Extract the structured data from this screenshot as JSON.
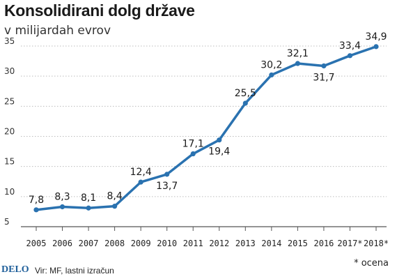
{
  "header": {
    "title": "Konsolidirani dolg države",
    "subtitle": "v milijardah evrov"
  },
  "footer": {
    "logo": "DELO",
    "source": "Vir: MF, lastni izračun",
    "footnote": "* ocena"
  },
  "colors": {
    "line": "#2a72b0",
    "grid": "#bdbdbd",
    "axis": "#555555"
  },
  "chart_data": {
    "type": "line",
    "title": "Konsolidirani dolg države",
    "subtitle": "v milijardah evrov",
    "categories": [
      "2005",
      "2006",
      "2007",
      "2008",
      "2009",
      "2010",
      "2011",
      "2012",
      "2013",
      "2014",
      "2015",
      "2016",
      "2017*",
      "2018*"
    ],
    "values": [
      7.8,
      8.3,
      8.1,
      8.4,
      12.4,
      13.7,
      17.1,
      19.4,
      25.5,
      30.2,
      32.1,
      31.7,
      33.4,
      34.9
    ],
    "value_labels": [
      "7,8",
      "8,3",
      "8,1",
      "8,4",
      "12,4",
      "13,7",
      "17,1",
      "19,4",
      "25,5",
      "30,2",
      "32,1",
      "31,7",
      "33,4",
      "34,9"
    ],
    "y_ticks": [
      5,
      10,
      15,
      20,
      25,
      30,
      35
    ],
    "ylim": [
      5,
      35
    ],
    "grid": true,
    "legend": "none"
  }
}
